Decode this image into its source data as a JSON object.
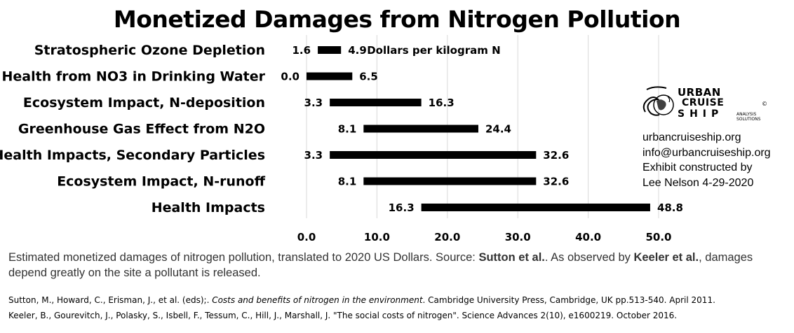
{
  "chart_data": {
    "type": "bar",
    "subtype": "floating-range",
    "title": "Monetized Damages from Nitrogen Pollution",
    "unit_label": "Dollars per kilogram N",
    "categories": [
      "Stratospheric Ozone Depletion",
      "Health from NO3 in Drinking Water",
      "Ecosystem Impact, N-deposition",
      "Greenhouse Gas Effect from N2O",
      "Health Impacts, Secondary Particles",
      "Ecosystem Impact, N-runoff",
      "Health Impacts"
    ],
    "low": [
      1.6,
      0.0,
      3.3,
      8.1,
      3.3,
      8.1,
      16.3
    ],
    "high": [
      4.9,
      6.5,
      16.3,
      24.4,
      32.6,
      32.6,
      48.8
    ],
    "low_labels": [
      "1.6",
      "0.0",
      "3.3",
      "8.1",
      "3.3",
      "8.1",
      "16.3"
    ],
    "high_labels": [
      "4.9",
      "6.5",
      "16.3",
      "24.4",
      "32.6",
      "32.6",
      "48.8"
    ],
    "x_ticks": [
      "0.0",
      "10.0",
      "20.0",
      "30.0",
      "40.0",
      "50.0"
    ],
    "xlim": [
      0,
      50
    ],
    "grid": "vertical",
    "bar_color": "#000000",
    "grid_color": "#d9d9d9"
  },
  "logo": {
    "line1": "URBAN",
    "line2": "CRUISE",
    "line3": "SHIP",
    "small1": "ANALYSIS",
    "small2": "SOLUTIONS",
    "mark": "©"
  },
  "contact": {
    "website": "urbancruiseship.org",
    "email": "info@urbancruiseship.org",
    "line3": "Exhibit constructed by",
    "line4": "Lee Nelson 4-29-2020"
  },
  "caption": {
    "part1": "Estimated monetized damages of nitrogen pollution, translated to 2020 US Dollars. Source: ",
    "source1": "Sutton et al.",
    "part2": ". As observed by ",
    "source2": "Keeler et al.",
    "part3": ", damages depend greatly on the site a pollutant is released."
  },
  "references": {
    "ref1_before": "Sutton, M., Howard, C., Erisman, J., et al. (eds);. ",
    "ref1_title": "Costs and benefits of nitrogen in the environment",
    "ref1_after": ". Cambridge University Press, Cambridge, UK pp.513-540. April 2011.",
    "ref2": "Keeler, B., Gourevitch, J., Polasky, S., Isbell, F., Tessum, C., Hill, J., Marshall, J. \"The social costs of nitrogen\". Science Advances 2(10), e1600219. October 2016."
  }
}
